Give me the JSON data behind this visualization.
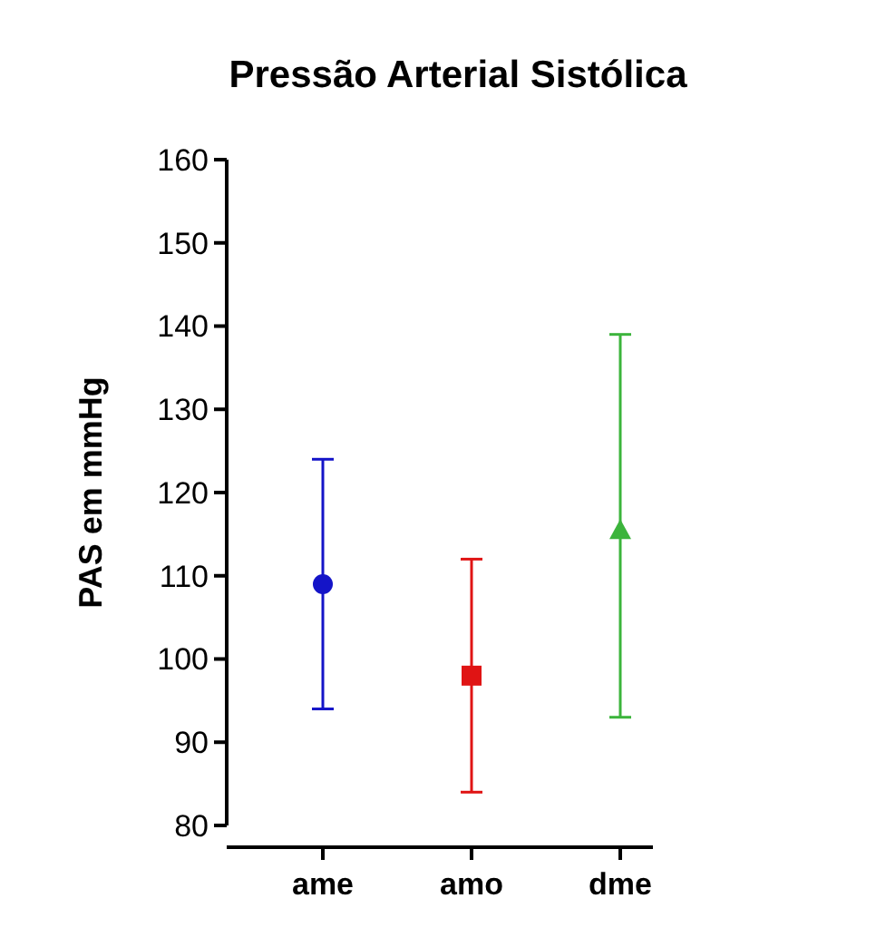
{
  "chart_data": {
    "type": "scatter",
    "title": "Pressão Arterial Sistólica",
    "ylabel": "PAS em mmHg",
    "categories": [
      "ame",
      "amo",
      "dme"
    ],
    "series": [
      {
        "color": "#1414c8",
        "marker": "circle",
        "values": [
          109,
          null,
          null
        ],
        "errors": [
          [
            94,
            124
          ],
          null,
          null
        ]
      },
      {
        "color": "#e01414",
        "marker": "square",
        "values": [
          null,
          98,
          null
        ],
        "errors": [
          null,
          [
            84,
            112
          ],
          null
        ]
      },
      {
        "color": "#3cb43c",
        "marker": "triangle",
        "values": [
          null,
          null,
          115.5
        ],
        "errors": [
          null,
          null,
          [
            93,
            139
          ]
        ]
      }
    ],
    "ylim": [
      80,
      160
    ],
    "yticks": [
      80,
      90,
      100,
      110,
      120,
      130,
      140,
      150,
      160
    ]
  }
}
